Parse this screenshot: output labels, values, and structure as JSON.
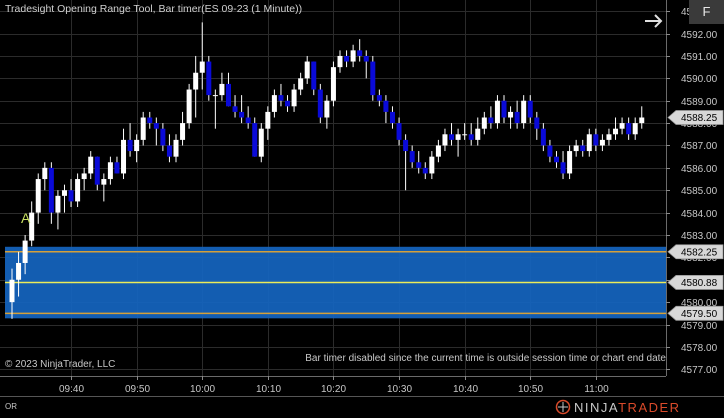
{
  "window": {
    "title": "Tradesight Opening Range Tool, Bar timer(ES 09-23 (1 Minute))",
    "copyright": "© 2023 NinjaTrader, LLC",
    "bar_timer_message": "Bar timer disabled since the current time is outside session time or chart end date",
    "f_button": "F",
    "or_label": "OR",
    "logo_ninja": "NINJA",
    "logo_trader": "TRADER",
    "marker_label": "A"
  },
  "colors": {
    "background": "#000000",
    "up_candle": "#ffffff",
    "down_candle": "#0a0ad8",
    "wick": "#ffffff",
    "range_fill": "#1565c0",
    "range_line": "#d4a03a",
    "mid_line": "#ecec5a",
    "marker": "#c8e060"
  },
  "chart_data": {
    "type": "candlestick",
    "title": "Tradesight Opening Range Tool, Bar timer(ES 09-23 (1 Minute))",
    "xlabel": "",
    "ylabel": "",
    "y_ticks": [
      4577.0,
      4578.0,
      4579.0,
      4580.0,
      4581.0,
      4582.0,
      4583.0,
      4584.0,
      4585.0,
      4586.0,
      4587.0,
      4588.0,
      4589.0,
      4590.0,
      4591.0,
      4592.0,
      4593.0
    ],
    "x_ticks": [
      "09:40",
      "09:50",
      "10:00",
      "10:10",
      "10:20",
      "10:30",
      "10:40",
      "10:50",
      "11:00"
    ],
    "ylim": [
      4576.7,
      4593.5
    ],
    "grid": true,
    "opening_range": {
      "high": 4582.25,
      "mid": 4580.88,
      "low": 4579.5
    },
    "last_price": 4588.25,
    "price_labels": [
      4588.25,
      4582.25,
      4580.88,
      4579.5
    ],
    "marker": {
      "label": "A",
      "bar_index": 2
    },
    "bars": [
      {
        "t": "09:31",
        "o": 4580.0,
        "h": 4581.5,
        "l": 4579.25,
        "c": 4581.0
      },
      {
        "t": "09:32",
        "o": 4581.0,
        "h": 4582.25,
        "l": 4580.25,
        "c": 4581.75
      },
      {
        "t": "09:33",
        "o": 4581.75,
        "h": 4583.0,
        "l": 4581.25,
        "c": 4582.75
      },
      {
        "t": "09:34",
        "o": 4582.75,
        "h": 4584.5,
        "l": 4582.5,
        "c": 4584.0
      },
      {
        "t": "09:35",
        "o": 4584.0,
        "h": 4585.75,
        "l": 4583.5,
        "c": 4585.5
      },
      {
        "t": "09:36",
        "o": 4585.5,
        "h": 4586.25,
        "l": 4585.0,
        "c": 4586.0
      },
      {
        "t": "09:37",
        "o": 4586.0,
        "h": 4586.25,
        "l": 4583.5,
        "c": 4584.0
      },
      {
        "t": "09:38",
        "o": 4584.0,
        "h": 4585.0,
        "l": 4583.25,
        "c": 4584.75
      },
      {
        "t": "09:39",
        "o": 4584.75,
        "h": 4585.25,
        "l": 4584.0,
        "c": 4585.0
      },
      {
        "t": "09:40",
        "o": 4585.0,
        "h": 4585.5,
        "l": 4584.25,
        "c": 4584.5
      },
      {
        "t": "09:41",
        "o": 4584.5,
        "h": 4585.75,
        "l": 4584.25,
        "c": 4585.5
      },
      {
        "t": "09:42",
        "o": 4585.5,
        "h": 4586.0,
        "l": 4585.0,
        "c": 4585.75
      },
      {
        "t": "09:43",
        "o": 4585.75,
        "h": 4586.75,
        "l": 4585.5,
        "c": 4586.5
      },
      {
        "t": "09:44",
        "o": 4586.5,
        "h": 4586.5,
        "l": 4585.0,
        "c": 4585.25
      },
      {
        "t": "09:45",
        "o": 4585.25,
        "h": 4585.75,
        "l": 4584.5,
        "c": 4585.5
      },
      {
        "t": "09:46",
        "o": 4585.5,
        "h": 4586.5,
        "l": 4585.25,
        "c": 4586.25
      },
      {
        "t": "09:47",
        "o": 4586.25,
        "h": 4586.5,
        "l": 4585.75,
        "c": 4585.75
      },
      {
        "t": "09:48",
        "o": 4585.75,
        "h": 4587.75,
        "l": 4585.5,
        "c": 4587.25
      },
      {
        "t": "09:49",
        "o": 4587.25,
        "h": 4588.0,
        "l": 4586.5,
        "c": 4586.75
      },
      {
        "t": "09:50",
        "o": 4586.75,
        "h": 4587.5,
        "l": 4586.25,
        "c": 4587.25
      },
      {
        "t": "09:51",
        "o": 4587.25,
        "h": 4588.5,
        "l": 4587.0,
        "c": 4588.25
      },
      {
        "t": "09:52",
        "o": 4588.25,
        "h": 4588.5,
        "l": 4587.75,
        "c": 4588.0
      },
      {
        "t": "09:53",
        "o": 4588.0,
        "h": 4588.25,
        "l": 4587.0,
        "c": 4587.75
      },
      {
        "t": "09:54",
        "o": 4587.75,
        "h": 4588.0,
        "l": 4586.75,
        "c": 4587.0
      },
      {
        "t": "09:55",
        "o": 4587.0,
        "h": 4587.5,
        "l": 4586.25,
        "c": 4586.5
      },
      {
        "t": "09:56",
        "o": 4586.5,
        "h": 4587.5,
        "l": 4586.25,
        "c": 4587.25
      },
      {
        "t": "09:57",
        "o": 4587.25,
        "h": 4588.5,
        "l": 4587.0,
        "c": 4588.0
      },
      {
        "t": "09:58",
        "o": 4588.0,
        "h": 4589.75,
        "l": 4587.75,
        "c": 4589.5
      },
      {
        "t": "09:59",
        "o": 4589.5,
        "h": 4591.0,
        "l": 4588.25,
        "c": 4590.25
      },
      {
        "t": "10:00",
        "o": 4590.25,
        "h": 4592.5,
        "l": 4589.5,
        "c": 4590.75
      },
      {
        "t": "10:01",
        "o": 4590.75,
        "h": 4591.0,
        "l": 4589.0,
        "c": 4589.25
      },
      {
        "t": "10:02",
        "o": 4589.25,
        "h": 4589.5,
        "l": 4587.75,
        "c": 4589.25
      },
      {
        "t": "10:03",
        "o": 4589.25,
        "h": 4590.25,
        "l": 4589.0,
        "c": 4589.75
      },
      {
        "t": "10:04",
        "o": 4589.75,
        "h": 4590.25,
        "l": 4588.75,
        "c": 4588.75
      },
      {
        "t": "10:05",
        "o": 4588.75,
        "h": 4589.25,
        "l": 4588.25,
        "c": 4588.5
      },
      {
        "t": "10:06",
        "o": 4588.5,
        "h": 4589.25,
        "l": 4588.0,
        "c": 4588.25
      },
      {
        "t": "10:07",
        "o": 4588.25,
        "h": 4588.75,
        "l": 4587.75,
        "c": 4588.0
      },
      {
        "t": "10:08",
        "o": 4588.0,
        "h": 4588.25,
        "l": 4586.5,
        "c": 4586.5
      },
      {
        "t": "10:09",
        "o": 4586.5,
        "h": 4588.0,
        "l": 4586.25,
        "c": 4587.75
      },
      {
        "t": "10:10",
        "o": 4587.75,
        "h": 4588.75,
        "l": 4587.25,
        "c": 4588.5
      },
      {
        "t": "10:11",
        "o": 4588.5,
        "h": 4589.5,
        "l": 4588.25,
        "c": 4589.25
      },
      {
        "t": "10:12",
        "o": 4589.25,
        "h": 4589.75,
        "l": 4588.75,
        "c": 4589.0
      },
      {
        "t": "10:13",
        "o": 4589.0,
        "h": 4589.25,
        "l": 4588.5,
        "c": 4588.75
      },
      {
        "t": "10:14",
        "o": 4588.75,
        "h": 4589.75,
        "l": 4588.5,
        "c": 4589.5
      },
      {
        "t": "10:15",
        "o": 4589.5,
        "h": 4590.25,
        "l": 4589.25,
        "c": 4590.0
      },
      {
        "t": "10:16",
        "o": 4590.0,
        "h": 4591.0,
        "l": 4589.75,
        "c": 4590.75
      },
      {
        "t": "10:17",
        "o": 4590.75,
        "h": 4590.75,
        "l": 4589.25,
        "c": 4589.5
      },
      {
        "t": "10:18",
        "o": 4589.5,
        "h": 4589.75,
        "l": 4588.0,
        "c": 4588.25
      },
      {
        "t": "10:19",
        "o": 4588.25,
        "h": 4589.25,
        "l": 4587.75,
        "c": 4589.0
      },
      {
        "t": "10:20",
        "o": 4589.0,
        "h": 4590.75,
        "l": 4588.75,
        "c": 4590.5
      },
      {
        "t": "10:21",
        "o": 4590.5,
        "h": 4591.25,
        "l": 4590.25,
        "c": 4591.0
      },
      {
        "t": "10:22",
        "o": 4591.0,
        "h": 4591.25,
        "l": 4590.5,
        "c": 4590.75
      },
      {
        "t": "10:23",
        "o": 4590.75,
        "h": 4591.5,
        "l": 4590.5,
        "c": 4591.25
      },
      {
        "t": "10:24",
        "o": 4591.25,
        "h": 4591.75,
        "l": 4590.75,
        "c": 4591.0
      },
      {
        "t": "10:25",
        "o": 4591.0,
        "h": 4591.25,
        "l": 4590.0,
        "c": 4590.75
      },
      {
        "t": "10:26",
        "o": 4590.75,
        "h": 4591.0,
        "l": 4589.0,
        "c": 4589.25
      },
      {
        "t": "10:27",
        "o": 4589.25,
        "h": 4589.5,
        "l": 4588.75,
        "c": 4589.0
      },
      {
        "t": "10:28",
        "o": 4589.0,
        "h": 4589.25,
        "l": 4588.0,
        "c": 4588.5
      },
      {
        "t": "10:29",
        "o": 4588.5,
        "h": 4588.75,
        "l": 4587.75,
        "c": 4588.0
      },
      {
        "t": "10:30",
        "o": 4588.0,
        "h": 4588.25,
        "l": 4587.0,
        "c": 4587.25
      },
      {
        "t": "10:31",
        "o": 4587.25,
        "h": 4587.5,
        "l": 4585.0,
        "c": 4586.75
      },
      {
        "t": "10:32",
        "o": 4586.75,
        "h": 4587.0,
        "l": 4586.0,
        "c": 4586.25
      },
      {
        "t": "10:33",
        "o": 4586.25,
        "h": 4586.75,
        "l": 4585.75,
        "c": 4586.0
      },
      {
        "t": "10:34",
        "o": 4586.0,
        "h": 4586.25,
        "l": 4585.5,
        "c": 4585.75
      },
      {
        "t": "10:35",
        "o": 4585.75,
        "h": 4586.75,
        "l": 4585.5,
        "c": 4586.5
      },
      {
        "t": "10:36",
        "o": 4586.5,
        "h": 4587.25,
        "l": 4586.25,
        "c": 4587.0
      },
      {
        "t": "10:37",
        "o": 4587.0,
        "h": 4587.75,
        "l": 4586.75,
        "c": 4587.5
      },
      {
        "t": "10:38",
        "o": 4587.5,
        "h": 4588.0,
        "l": 4587.0,
        "c": 4587.25
      },
      {
        "t": "10:39",
        "o": 4587.25,
        "h": 4587.75,
        "l": 4586.5,
        "c": 4587.5
      },
      {
        "t": "10:40",
        "o": 4587.5,
        "h": 4588.0,
        "l": 4587.25,
        "c": 4587.5
      },
      {
        "t": "10:41",
        "o": 4587.5,
        "h": 4588.0,
        "l": 4587.0,
        "c": 4587.25
      },
      {
        "t": "10:42",
        "o": 4587.25,
        "h": 4588.25,
        "l": 4587.0,
        "c": 4587.75
      },
      {
        "t": "10:43",
        "o": 4587.75,
        "h": 4588.5,
        "l": 4587.5,
        "c": 4588.25
      },
      {
        "t": "10:44",
        "o": 4588.25,
        "h": 4588.75,
        "l": 4587.75,
        "c": 4588.0
      },
      {
        "t": "10:45",
        "o": 4588.0,
        "h": 4589.25,
        "l": 4587.75,
        "c": 4589.0
      },
      {
        "t": "10:46",
        "o": 4589.0,
        "h": 4589.25,
        "l": 4588.0,
        "c": 4588.25
      },
      {
        "t": "10:47",
        "o": 4588.25,
        "h": 4588.75,
        "l": 4587.75,
        "c": 4588.5
      },
      {
        "t": "10:48",
        "o": 4588.5,
        "h": 4589.0,
        "l": 4587.75,
        "c": 4588.0
      },
      {
        "t": "10:49",
        "o": 4588.0,
        "h": 4589.25,
        "l": 4587.75,
        "c": 4589.0
      },
      {
        "t": "10:50",
        "o": 4589.0,
        "h": 4589.25,
        "l": 4588.0,
        "c": 4588.25
      },
      {
        "t": "10:51",
        "o": 4588.25,
        "h": 4588.5,
        "l": 4587.25,
        "c": 4587.75
      },
      {
        "t": "10:52",
        "o": 4587.75,
        "h": 4588.0,
        "l": 4586.75,
        "c": 4587.0
      },
      {
        "t": "10:53",
        "o": 4587.0,
        "h": 4587.25,
        "l": 4586.25,
        "c": 4586.5
      },
      {
        "t": "10:54",
        "o": 4586.5,
        "h": 4586.75,
        "l": 4586.0,
        "c": 4586.25
      },
      {
        "t": "10:55",
        "o": 4586.25,
        "h": 4586.75,
        "l": 4585.5,
        "c": 4585.75
      },
      {
        "t": "10:56",
        "o": 4585.75,
        "h": 4587.0,
        "l": 4585.5,
        "c": 4586.75
      },
      {
        "t": "10:57",
        "o": 4586.75,
        "h": 4587.25,
        "l": 4586.5,
        "c": 4587.0
      },
      {
        "t": "10:58",
        "o": 4587.0,
        "h": 4587.25,
        "l": 4586.5,
        "c": 4586.75
      },
      {
        "t": "10:59",
        "o": 4586.75,
        "h": 4587.75,
        "l": 4586.5,
        "c": 4587.5
      },
      {
        "t": "11:00",
        "o": 4587.5,
        "h": 4587.75,
        "l": 4586.75,
        "c": 4587.0
      },
      {
        "t": "11:01",
        "o": 4587.0,
        "h": 4587.5,
        "l": 4586.75,
        "c": 4587.25
      },
      {
        "t": "11:02",
        "o": 4587.25,
        "h": 4587.75,
        "l": 4587.0,
        "c": 4587.5
      },
      {
        "t": "11:03",
        "o": 4587.5,
        "h": 4588.25,
        "l": 4587.25,
        "c": 4587.75
      },
      {
        "t": "11:04",
        "o": 4587.75,
        "h": 4588.25,
        "l": 4587.5,
        "c": 4588.0
      },
      {
        "t": "11:05",
        "o": 4588.0,
        "h": 4588.25,
        "l": 4587.25,
        "c": 4587.5
      },
      {
        "t": "11:06",
        "o": 4587.5,
        "h": 4588.25,
        "l": 4587.25,
        "c": 4588.0
      },
      {
        "t": "11:07",
        "o": 4588.0,
        "h": 4588.75,
        "l": 4587.75,
        "c": 4588.25
      }
    ]
  }
}
